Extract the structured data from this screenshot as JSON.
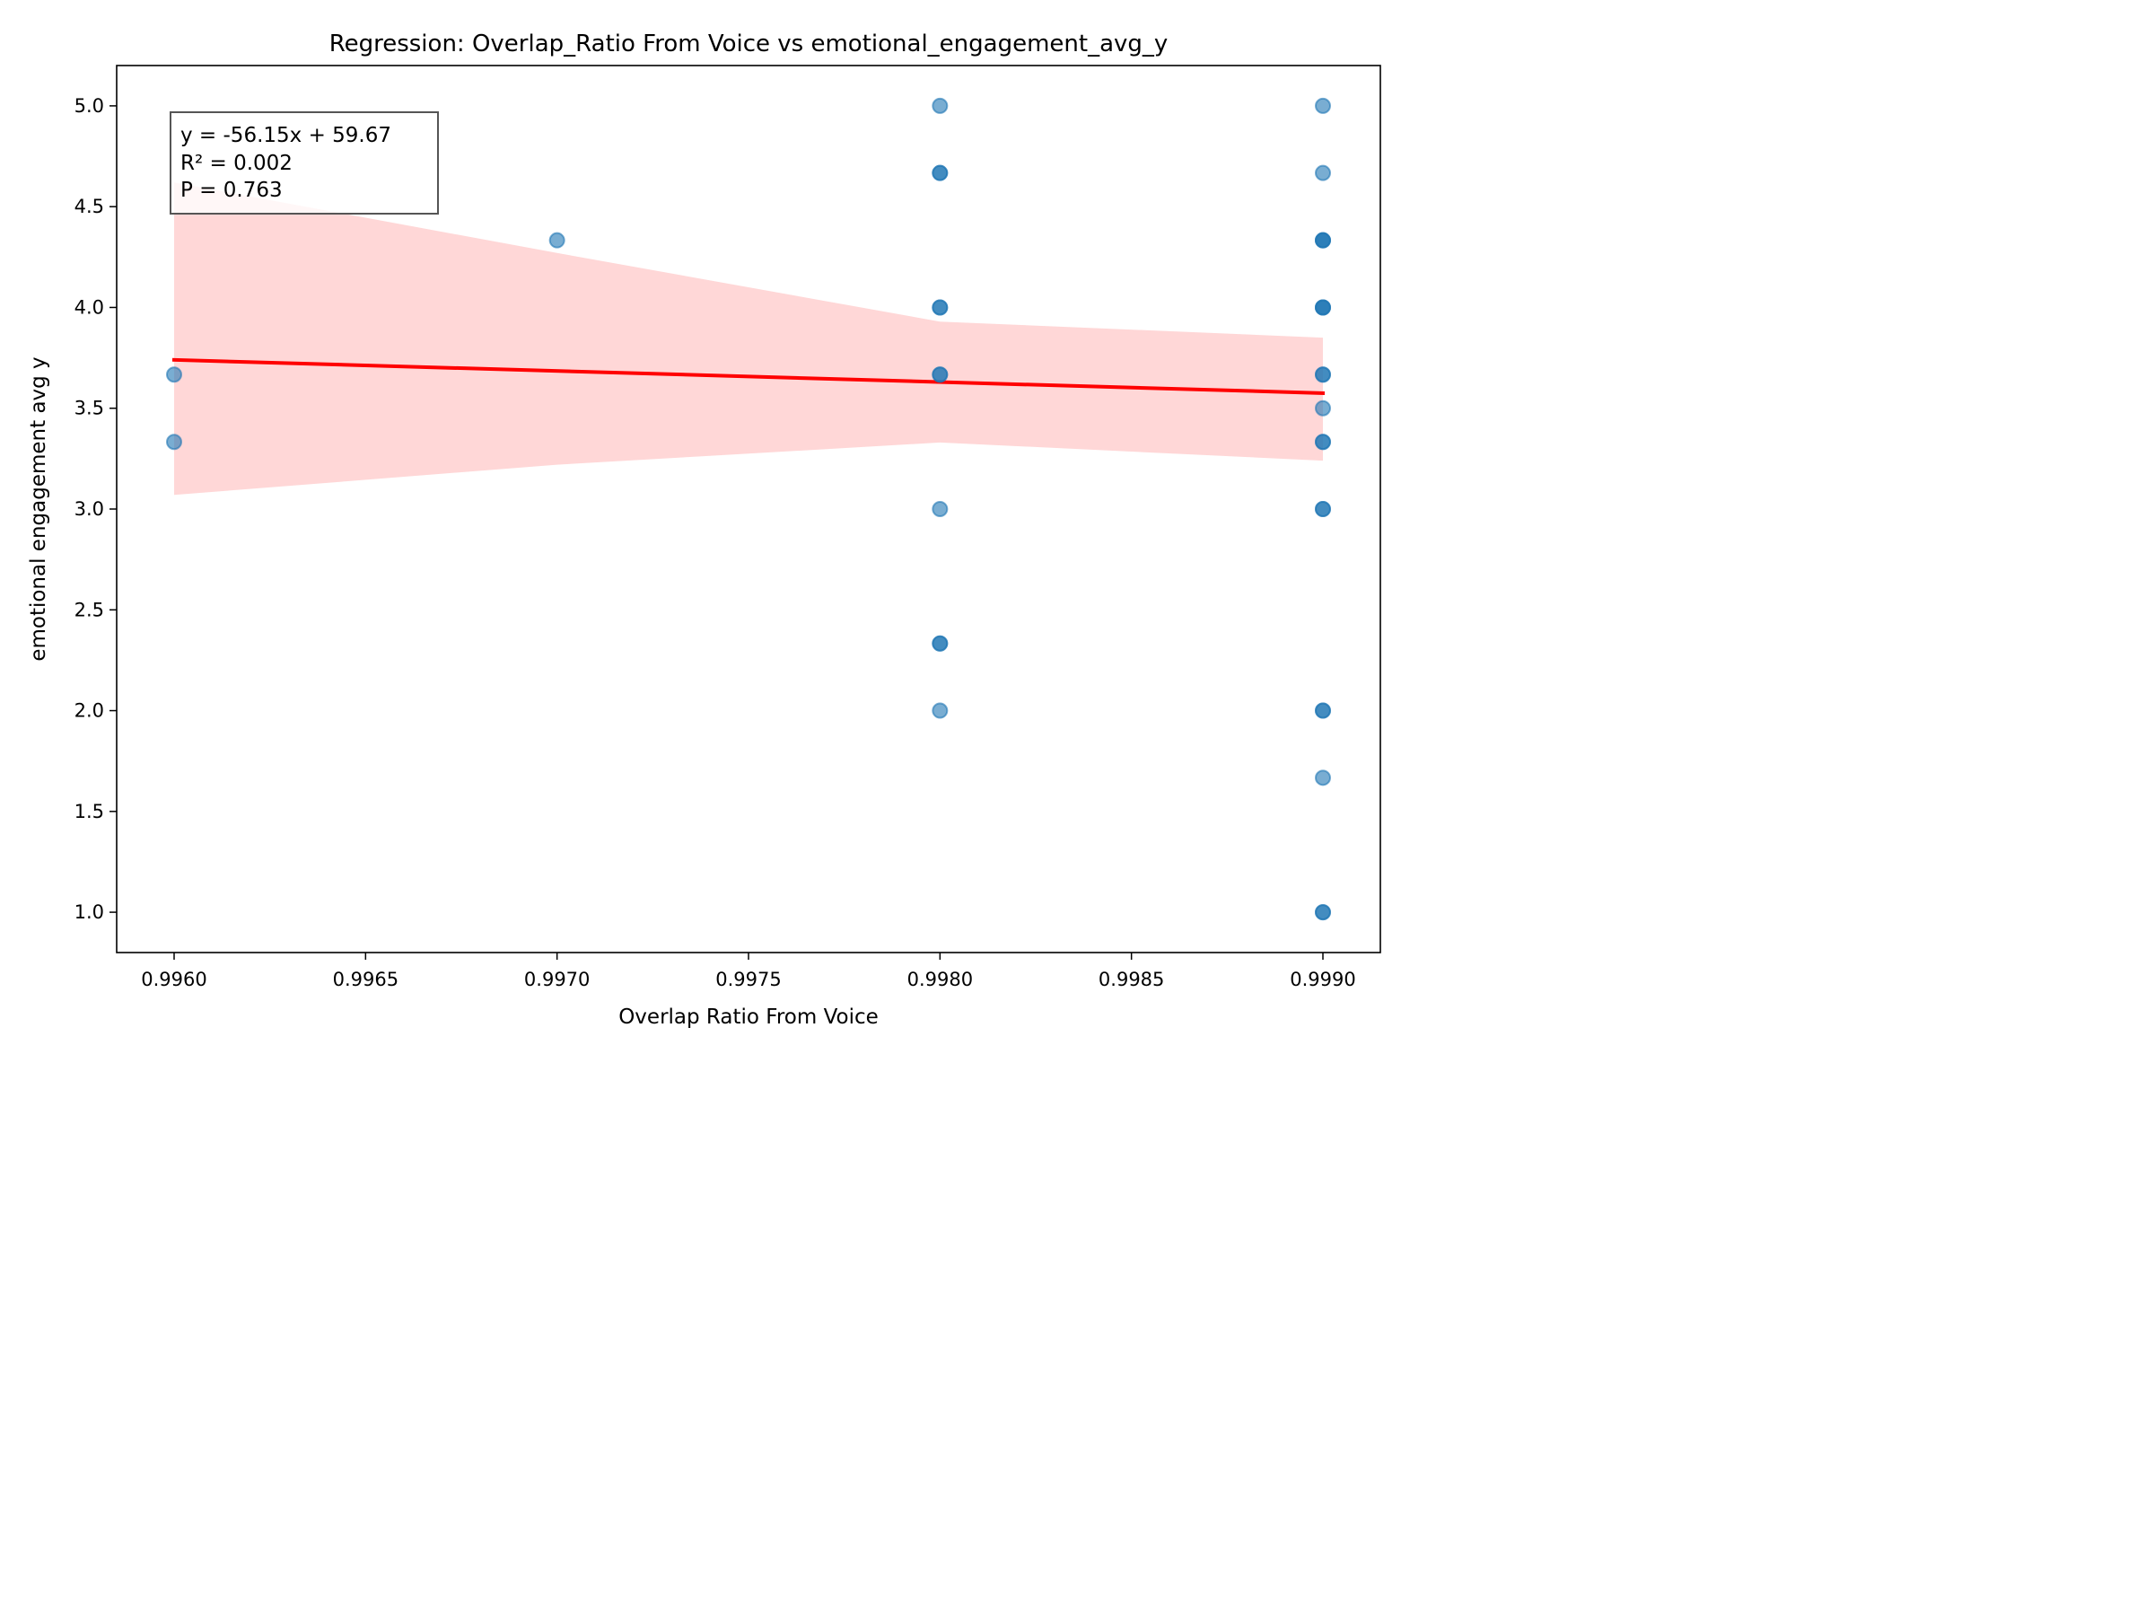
{
  "chart_data": {
    "type": "scatter",
    "title": "Regression: Overlap_Ratio From Voice vs emotional_engagement_avg_y",
    "xlabel": "Overlap Ratio From Voice",
    "ylabel": "emotional engagement avg y",
    "xlim": [
      0.99585,
      0.99915
    ],
    "ylim": [
      0.8,
      5.2
    ],
    "xticks": [
      "0.9960",
      "0.9965",
      "0.9970",
      "0.9975",
      "0.9980",
      "0.9985",
      "0.9990"
    ],
    "yticks": [
      "1.0",
      "1.5",
      "2.0",
      "2.5",
      "3.0",
      "3.5",
      "4.0",
      "4.5",
      "5.0"
    ],
    "grid": false,
    "points": [
      {
        "x": 0.996,
        "y": 3.667
      },
      {
        "x": 0.996,
        "y": 3.333
      },
      {
        "x": 0.997,
        "y": 4.333
      },
      {
        "x": 0.998,
        "y": 5.0
      },
      {
        "x": 0.998,
        "y": 4.667
      },
      {
        "x": 0.998,
        "y": 4.667
      },
      {
        "x": 0.998,
        "y": 4.0
      },
      {
        "x": 0.998,
        "y": 4.0
      },
      {
        "x": 0.998,
        "y": 3.667
      },
      {
        "x": 0.998,
        "y": 3.667
      },
      {
        "x": 0.998,
        "y": 3.0
      },
      {
        "x": 0.998,
        "y": 2.333
      },
      {
        "x": 0.998,
        "y": 2.333
      },
      {
        "x": 0.998,
        "y": 2.0
      },
      {
        "x": 0.999,
        "y": 5.0
      },
      {
        "x": 0.999,
        "y": 4.667
      },
      {
        "x": 0.999,
        "y": 4.333
      },
      {
        "x": 0.999,
        "y": 4.333
      },
      {
        "x": 0.999,
        "y": 4.333
      },
      {
        "x": 0.999,
        "y": 4.0
      },
      {
        "x": 0.999,
        "y": 4.0
      },
      {
        "x": 0.999,
        "y": 4.0
      },
      {
        "x": 0.999,
        "y": 3.667
      },
      {
        "x": 0.999,
        "y": 3.667
      },
      {
        "x": 0.999,
        "y": 3.5
      },
      {
        "x": 0.999,
        "y": 3.333
      },
      {
        "x": 0.999,
        "y": 3.333
      },
      {
        "x": 0.999,
        "y": 3.0
      },
      {
        "x": 0.999,
        "y": 3.0
      },
      {
        "x": 0.999,
        "y": 2.0
      },
      {
        "x": 0.999,
        "y": 2.0
      },
      {
        "x": 0.999,
        "y": 1.667
      },
      {
        "x": 0.999,
        "y": 1.0
      },
      {
        "x": 0.999,
        "y": 1.0
      }
    ],
    "regression": {
      "slope": -56.15,
      "intercept": 59.67,
      "x_range": [
        0.996,
        0.999
      ],
      "line_start_y": 3.74,
      "line_end_y": 3.575
    },
    "confidence_band": {
      "x": [
        0.996,
        0.997,
        0.998,
        0.999
      ],
      "upper": [
        4.62,
        4.27,
        3.93,
        3.85
      ],
      "lower": [
        3.07,
        3.22,
        3.33,
        3.24
      ]
    },
    "annotation_lines": [
      "y = -56.15x + 59.67",
      "R² = 0.002",
      "P = 0.763"
    ],
    "colors": {
      "points": "#1f77b4",
      "line": "#ff0000",
      "band": "#ffd7d7",
      "box_edge": "#555555"
    }
  }
}
